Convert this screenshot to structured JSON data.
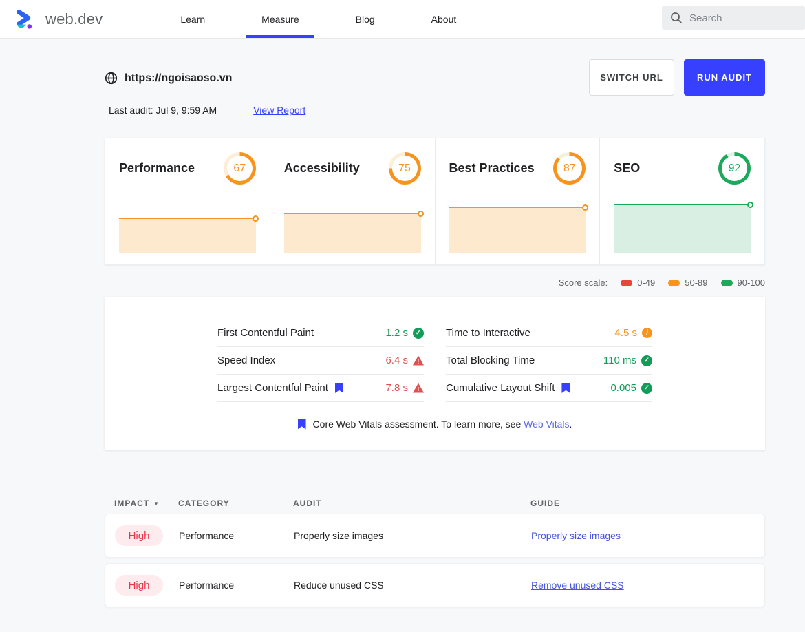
{
  "colors": {
    "accent": "#3740ff"
  },
  "header": {
    "brand": "web.dev",
    "nav": [
      {
        "label": "Learn",
        "active": false
      },
      {
        "label": "Measure",
        "active": true
      },
      {
        "label": "Blog",
        "active": false
      },
      {
        "label": "About",
        "active": false
      }
    ],
    "search_placeholder": "Search"
  },
  "audit_bar": {
    "url": "https://ngoisaoso.vn",
    "switch_url_label": "SWITCH URL",
    "run_audit_label": "RUN AUDIT",
    "last_audit": "Last audit: Jul 9, 9:59 AM",
    "view_report_label": "View Report"
  },
  "scores": {
    "cards": [
      {
        "label": "Performance",
        "value": 67,
        "color": "#f7941e",
        "track": "#fdeed8",
        "fill": "#fce9ce"
      },
      {
        "label": "Accessibility",
        "value": 75,
        "color": "#f7941e",
        "track": "#fdeed8",
        "fill": "#fce9ce"
      },
      {
        "label": "Best Practices",
        "value": 87,
        "color": "#f7941e",
        "track": "#fdeed8",
        "fill": "#fce9ce"
      },
      {
        "label": "SEO",
        "value": 92,
        "color": "#1ca95c",
        "track": "#e1f3e9",
        "fill": "#d9efe3"
      }
    ],
    "scale": {
      "label": "Score scale:",
      "items": [
        {
          "range": "0-49",
          "color": "#e8453c"
        },
        {
          "range": "50-89",
          "color": "#f7941e"
        },
        {
          "range": "90-100",
          "color": "#1ca95c"
        }
      ]
    }
  },
  "metrics": {
    "columns": [
      [
        {
          "label": "First Contentful Paint",
          "value": "1.2 s",
          "color": "#0f9d58",
          "icon": "check",
          "bookmark": false
        },
        {
          "label": "Speed Index",
          "value": "6.4 s",
          "color": "#df5151",
          "icon": "warning",
          "bookmark": false
        },
        {
          "label": "Largest Contentful Paint",
          "value": "7.8 s",
          "color": "#df5151",
          "icon": "warning",
          "bookmark": true
        }
      ],
      [
        {
          "label": "Time to Interactive",
          "value": "4.5 s",
          "color": "#f7941e",
          "icon": "info",
          "bookmark": false
        },
        {
          "label": "Total Blocking Time",
          "value": "110 ms",
          "color": "#0f9d58",
          "icon": "check",
          "bookmark": false
        },
        {
          "label": "Cumulative Layout Shift",
          "value": "0.005",
          "color": "#0f9d58",
          "icon": "check",
          "bookmark": true
        }
      ]
    ],
    "note": {
      "prefix": "Core Web Vitals assessment. To learn more, see",
      "link": "Web Vitals",
      "suffix": "."
    }
  },
  "audits": {
    "headers": [
      "IMPACT",
      "CATEGORY",
      "AUDIT",
      "GUIDE"
    ],
    "impact_colors": {
      "text": "#e8374a",
      "bg": "#fdebee"
    },
    "rows": [
      {
        "impact": "High",
        "category": "Performance",
        "audit": "Properly size images",
        "guide": "Properly size images"
      },
      {
        "impact": "High",
        "category": "Performance",
        "audit": "Reduce unused CSS",
        "guide": "Remove unused CSS"
      }
    ]
  }
}
